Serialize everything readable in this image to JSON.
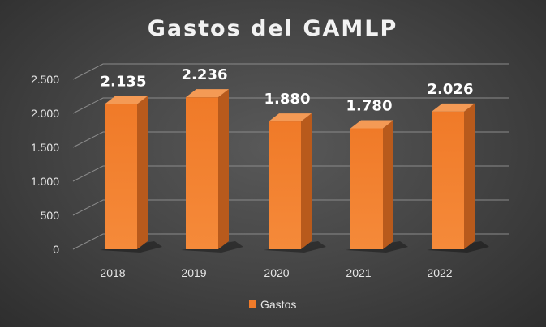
{
  "chart_data": {
    "type": "bar",
    "title": "Gastos del GAMLP",
    "categories": [
      "2018",
      "2019",
      "2020",
      "2021",
      "2022"
    ],
    "series": [
      {
        "name": "Gastos",
        "values": [
          2135,
          2236,
          1880,
          1780,
          2026
        ]
      }
    ],
    "data_labels": [
      "2.135",
      "2.236",
      "1.880",
      "1.780",
      "2.026"
    ],
    "y_ticks": [
      0,
      500,
      1000,
      1500,
      2000,
      2500
    ],
    "y_tick_labels": [
      "0",
      "500",
      "1.000",
      "1.500",
      "2.000",
      "2.500"
    ],
    "ylim": [
      0,
      2500
    ],
    "xlabel": "",
    "ylabel": "",
    "grid": true,
    "legend_position": "bottom",
    "colors": {
      "bar_front": "#f07b2a",
      "bar_side": "#b85a1c",
      "bar_top": "#f49a55"
    }
  }
}
